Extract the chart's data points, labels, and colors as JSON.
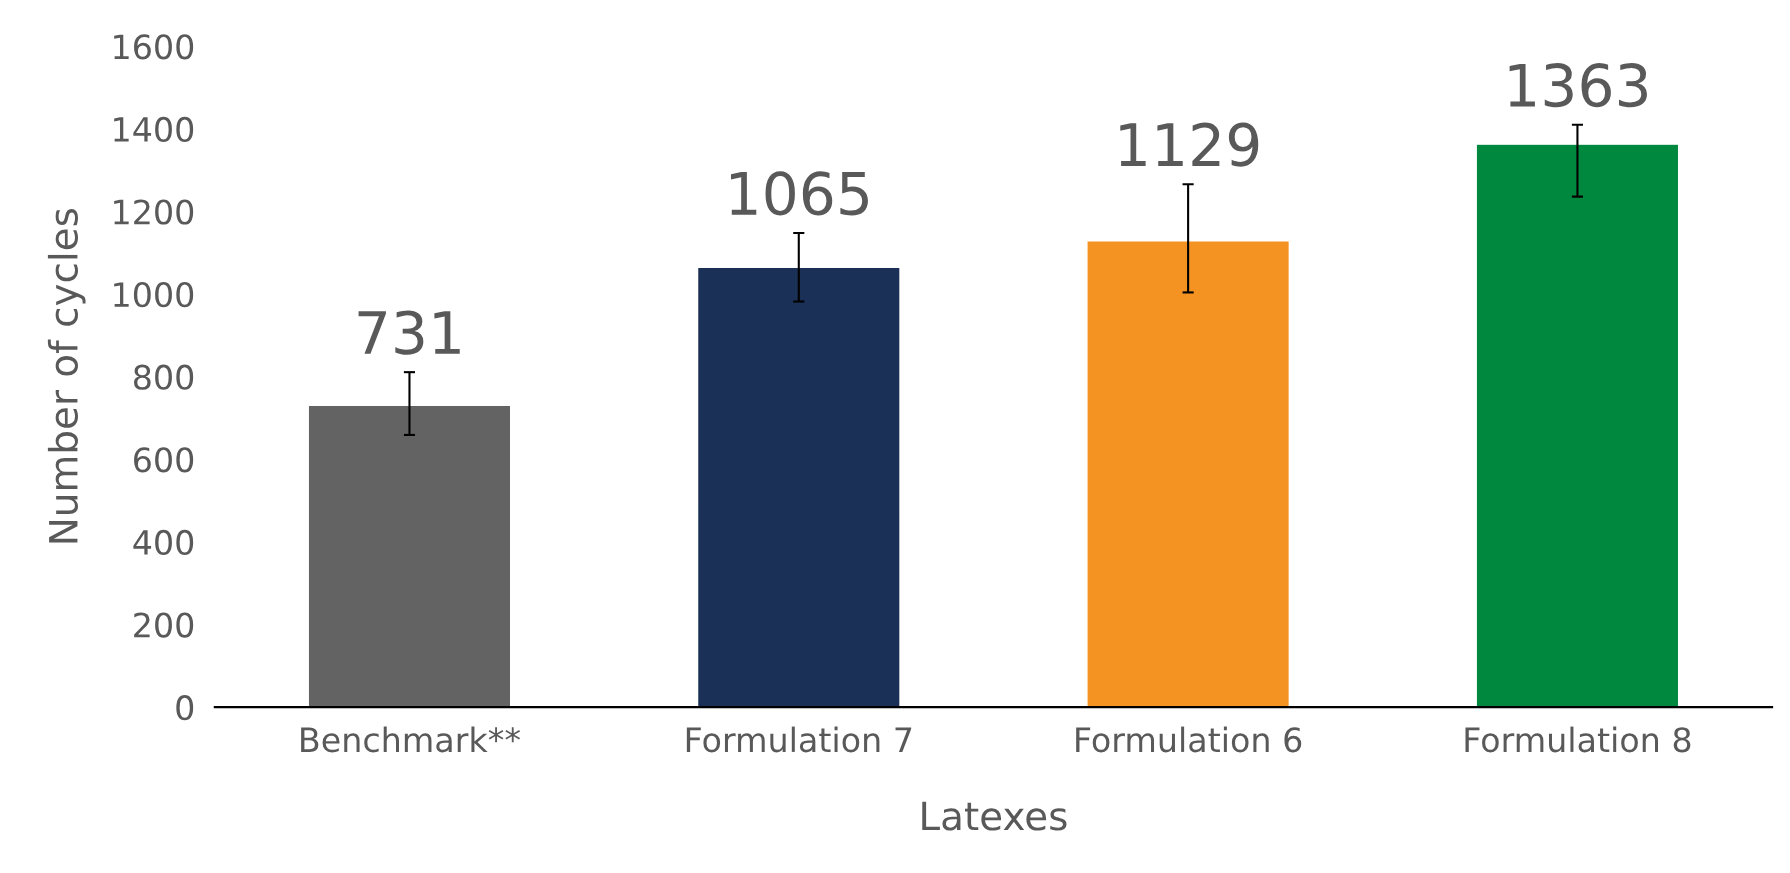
{
  "chart_data": {
    "type": "bar",
    "xlabel": "Latexes",
    "ylabel": "Number of cycles",
    "categories": [
      "Benchmark**",
      "Formulation 7",
      "Formulation 6",
      "Formulation 8"
    ],
    "values": [
      731,
      1065,
      1129,
      1363
    ],
    "colors": [
      "#636363",
      "#1a3057",
      "#f59322",
      "#00893e"
    ],
    "errors": [
      [
        659,
        811
      ],
      [
        982,
        1148
      ],
      [
        1004,
        1266
      ],
      [
        1236,
        1410
      ]
    ],
    "ylim": [
      0,
      1600
    ],
    "yticks": [
      0,
      200,
      400,
      600,
      800,
      1000,
      1200,
      1400,
      1600
    ],
    "data_labels": true,
    "grid": false,
    "legend": false
  }
}
